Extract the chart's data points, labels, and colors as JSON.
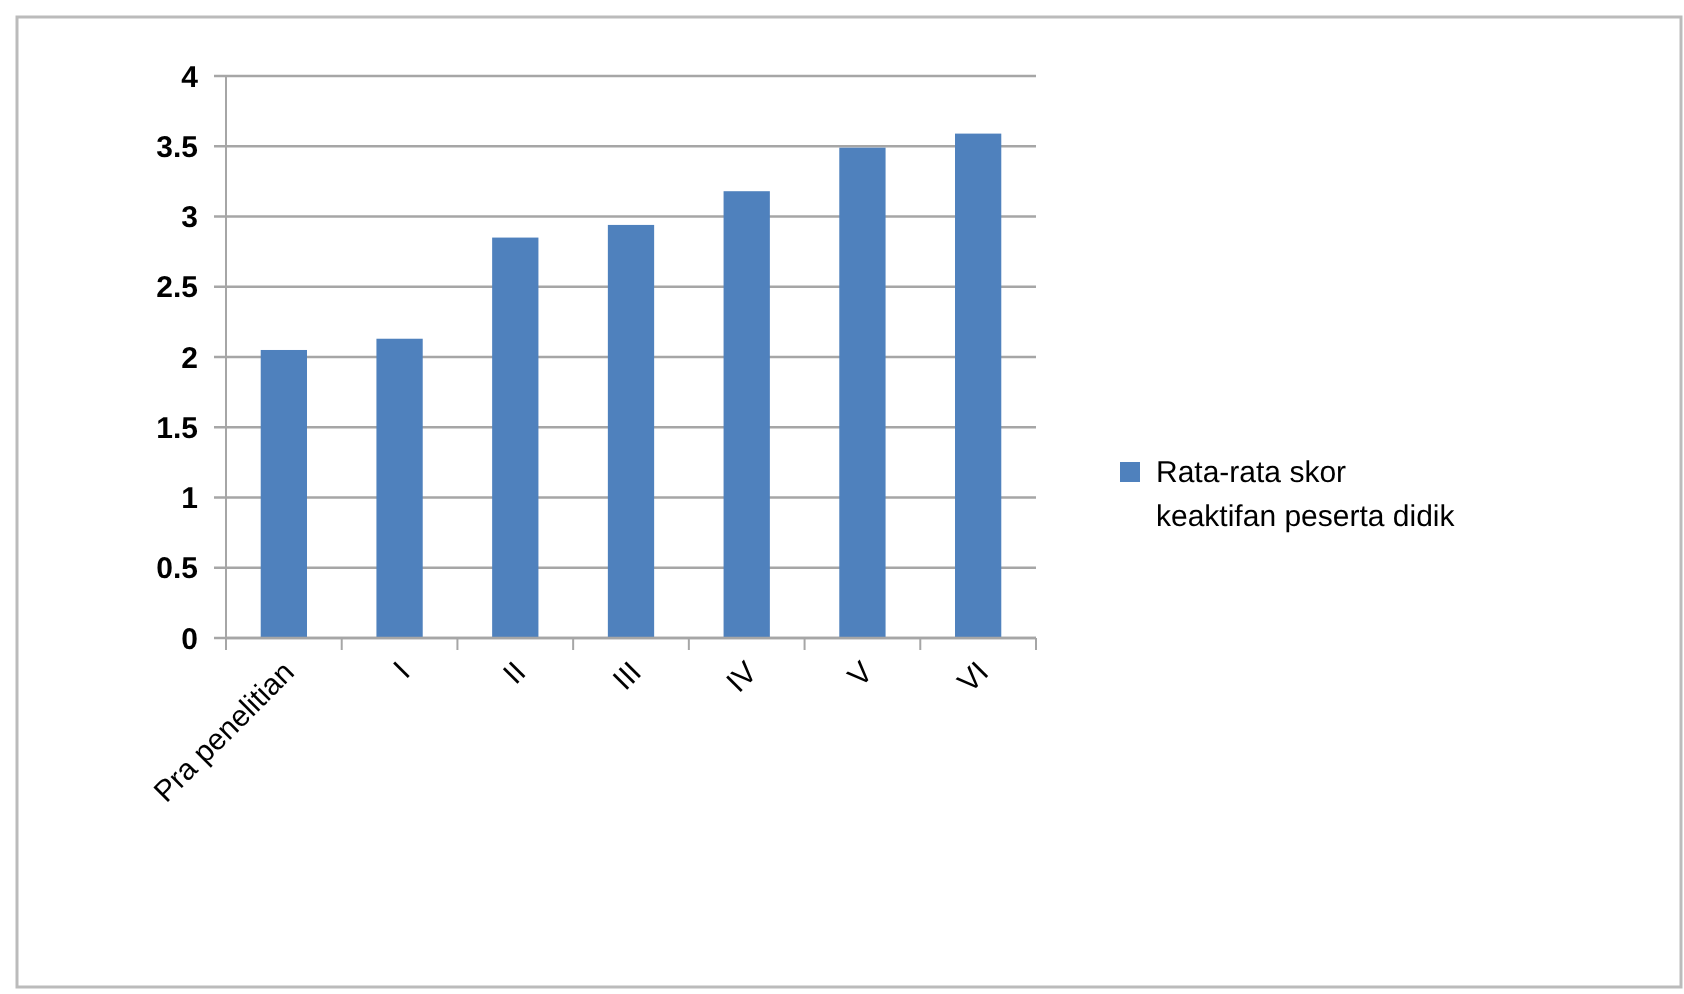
{
  "chart_data": {
    "type": "bar",
    "categories": [
      "Pra penelitian",
      "I",
      "II",
      "III",
      "IV",
      "V",
      "VI"
    ],
    "series": [
      {
        "name": "Rata-rata skor keaktifan peserta didik",
        "color": "#4f81bd",
        "values": [
          2.05,
          2.13,
          2.85,
          2.94,
          3.18,
          3.49,
          3.59
        ]
      }
    ],
    "ylim": [
      0,
      4
    ],
    "yticks": [
      0,
      0.5,
      1,
      1.5,
      2,
      2.5,
      3,
      3.5,
      4
    ],
    "grid": "y",
    "legend": "right"
  }
}
